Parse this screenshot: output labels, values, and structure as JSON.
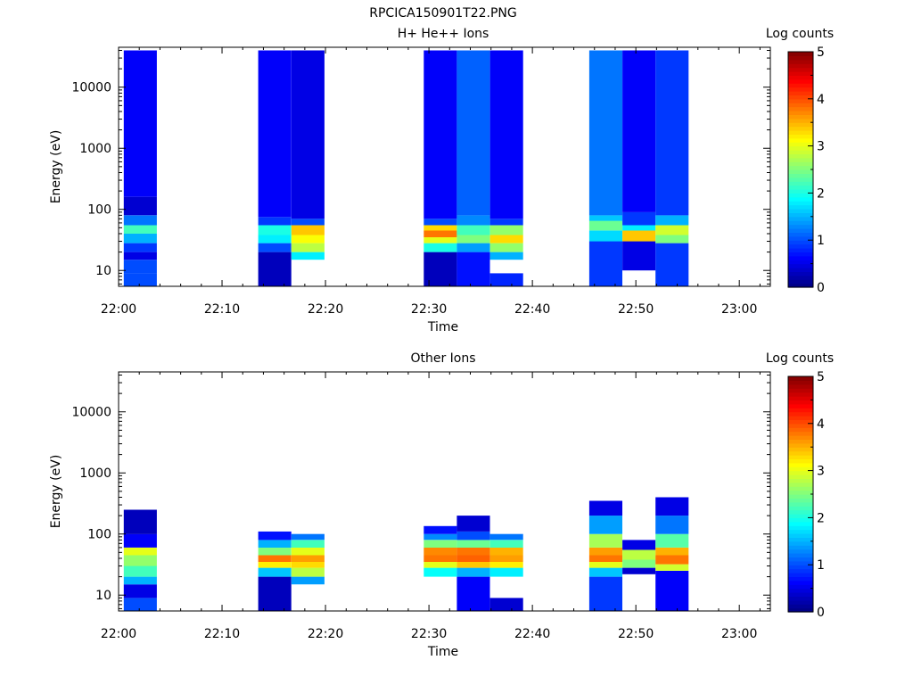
{
  "figure_title": "RPCICA150901T22.PNG",
  "colormap": [
    "#00007f",
    "#0000ff",
    "#007fff",
    "#00ffff",
    "#7fff7f",
    "#ffff00",
    "#ff7f00",
    "#ff0000",
    "#7f0000"
  ],
  "chart_data": [
    {
      "type": "heatmap",
      "title": "H+ He++ Ions",
      "xlabel": "Time",
      "ylabel": "Energy (eV)",
      "x_tick_labels": [
        "22:00",
        "22:10",
        "22:20",
        "22:30",
        "22:40",
        "22:50",
        "23:00"
      ],
      "xlim_minutes": [
        0,
        63
      ],
      "y_scale": "log",
      "ylim": [
        5.5,
        45000
      ],
      "y_tick_labels": [
        "10",
        "100",
        "1000",
        "10000"
      ],
      "colorbar": {
        "label": "Log counts",
        "range": [
          0,
          5
        ],
        "tick_labels": [
          "0",
          "1",
          "2",
          "3",
          "4",
          "5"
        ]
      },
      "columns": [
        {
          "t_start_min": 0.5,
          "t_end_min": 3.7,
          "bins": [
            [
              5.5,
              9,
              1.0
            ],
            [
              9,
              15,
              1.0
            ],
            [
              15,
              20,
              0.5
            ],
            [
              20,
              28,
              0.9
            ],
            [
              28,
              40,
              1.5
            ],
            [
              40,
              55,
              2.2
            ],
            [
              55,
              80,
              1.2
            ],
            [
              80,
              160,
              0.4
            ],
            [
              160,
              40000,
              0.6
            ]
          ]
        },
        {
          "t_start_min": 13.5,
          "t_end_min": 16.7,
          "bins": [
            [
              5.5,
              20,
              0.3
            ],
            [
              20,
              28,
              1.0
            ],
            [
              28,
              38,
              1.8
            ],
            [
              38,
              55,
              2.0
            ],
            [
              55,
              75,
              0.9
            ],
            [
              75,
              40000,
              0.6
            ]
          ]
        },
        {
          "t_start_min": 16.7,
          "t_end_min": 19.9,
          "bins": [
            [
              15,
              20,
              1.8
            ],
            [
              20,
              28,
              2.8
            ],
            [
              28,
              38,
              3.1
            ],
            [
              38,
              55,
              3.4
            ],
            [
              55,
              70,
              1.0
            ],
            [
              70,
              40000,
              0.5
            ]
          ]
        },
        {
          "t_start_min": 29.5,
          "t_end_min": 32.7,
          "bins": [
            [
              5.5,
              20,
              0.3
            ],
            [
              20,
              28,
              2.0
            ],
            [
              28,
              35,
              3.0
            ],
            [
              35,
              45,
              3.8
            ],
            [
              45,
              55,
              3.3
            ],
            [
              55,
              70,
              1.0
            ],
            [
              70,
              40000,
              0.6
            ]
          ]
        },
        {
          "t_start_min": 32.7,
          "t_end_min": 35.9,
          "bins": [
            [
              5.5,
              20,
              0.7
            ],
            [
              20,
              28,
              1.4
            ],
            [
              28,
              38,
              2.5
            ],
            [
              38,
              55,
              2.2
            ],
            [
              55,
              80,
              1.3
            ],
            [
              80,
              40000,
              1.1
            ]
          ]
        },
        {
          "t_start_min": 35.9,
          "t_end_min": 39.1,
          "bins": [
            [
              5.5,
              9,
              0.8
            ],
            [
              15,
              20,
              1.5
            ],
            [
              20,
              28,
              2.6
            ],
            [
              28,
              38,
              3.3
            ],
            [
              38,
              55,
              2.6
            ],
            [
              55,
              70,
              0.9
            ],
            [
              70,
              40000,
              0.6
            ]
          ]
        },
        {
          "t_start_min": 45.5,
          "t_end_min": 48.7,
          "bins": [
            [
              5.5,
              30,
              0.9
            ],
            [
              30,
              45,
              1.7
            ],
            [
              45,
              65,
              2.4
            ],
            [
              65,
              80,
              1.6
            ],
            [
              80,
              40000,
              1.2
            ]
          ]
        },
        {
          "t_start_min": 48.7,
          "t_end_min": 51.9,
          "bins": [
            [
              10,
              30,
              0.5
            ],
            [
              30,
              45,
              3.4
            ],
            [
              45,
              55,
              1.8
            ],
            [
              55,
              90,
              0.9
            ],
            [
              90,
              40000,
              0.6
            ]
          ]
        },
        {
          "t_start_min": 51.9,
          "t_end_min": 55.1,
          "bins": [
            [
              5.5,
              28,
              0.9
            ],
            [
              28,
              38,
              2.5
            ],
            [
              38,
              55,
              2.9
            ],
            [
              55,
              80,
              1.5
            ],
            [
              80,
              40000,
              0.9
            ]
          ]
        }
      ]
    },
    {
      "type": "heatmap",
      "title": "Other Ions",
      "xlabel": "Time",
      "ylabel": "Energy (eV)",
      "x_tick_labels": [
        "22:00",
        "22:10",
        "22:20",
        "22:30",
        "22:40",
        "22:50",
        "23:00"
      ],
      "xlim_minutes": [
        0,
        63
      ],
      "y_scale": "log",
      "ylim": [
        5.5,
        45000
      ],
      "y_tick_labels": [
        "10",
        "100",
        "1000",
        "10000"
      ],
      "colorbar": {
        "label": "Log counts",
        "range": [
          0,
          5
        ],
        "tick_labels": [
          "0",
          "1",
          "2",
          "3",
          "4",
          "5"
        ]
      },
      "columns": [
        {
          "t_start_min": 0.5,
          "t_end_min": 3.7,
          "bins": [
            [
              5.5,
              9,
              1.0
            ],
            [
              9,
              15,
              0.5
            ],
            [
              15,
              20,
              1.5
            ],
            [
              20,
              30,
              2.2
            ],
            [
              30,
              45,
              2.6
            ],
            [
              45,
              60,
              3.0
            ],
            [
              60,
              100,
              0.6
            ],
            [
              100,
              250,
              0.3
            ]
          ]
        },
        {
          "t_start_min": 13.5,
          "t_end_min": 16.7,
          "bins": [
            [
              5.5,
              20,
              0.3
            ],
            [
              20,
              28,
              1.6
            ],
            [
              28,
              35,
              3.2
            ],
            [
              35,
              45,
              3.8
            ],
            [
              45,
              60,
              2.5
            ],
            [
              60,
              80,
              1.5
            ],
            [
              80,
              110,
              0.7
            ]
          ]
        },
        {
          "t_start_min": 16.7,
          "t_end_min": 19.9,
          "bins": [
            [
              15,
              20,
              1.4
            ],
            [
              20,
              28,
              2.8
            ],
            [
              28,
              35,
              3.3
            ],
            [
              35,
              45,
              3.6
            ],
            [
              45,
              60,
              3.0
            ],
            [
              60,
              80,
              2.2
            ],
            [
              80,
              100,
              1.2
            ]
          ]
        },
        {
          "t_start_min": 29.5,
          "t_end_min": 32.7,
          "bins": [
            [
              20,
              28,
              1.9
            ],
            [
              28,
              35,
              3.0
            ],
            [
              35,
              45,
              3.8
            ],
            [
              45,
              60,
              3.7
            ],
            [
              60,
              80,
              2.5
            ],
            [
              80,
              100,
              1.3
            ],
            [
              100,
              135,
              0.7
            ]
          ]
        },
        {
          "t_start_min": 32.7,
          "t_end_min": 35.9,
          "bins": [
            [
              5.5,
              20,
              0.6
            ],
            [
              20,
              28,
              1.5
            ],
            [
              28,
              35,
              3.4
            ],
            [
              35,
              45,
              3.9
            ],
            [
              45,
              60,
              3.8
            ],
            [
              60,
              80,
              2.4
            ],
            [
              80,
              110,
              1.0
            ],
            [
              110,
              200,
              0.4
            ]
          ]
        },
        {
          "t_start_min": 35.9,
          "t_end_min": 39.1,
          "bins": [
            [
              5.5,
              9,
              0.4
            ],
            [
              20,
              28,
              1.8
            ],
            [
              28,
              35,
              3.2
            ],
            [
              35,
              45,
              3.6
            ],
            [
              45,
              60,
              3.5
            ],
            [
              60,
              80,
              2.2
            ],
            [
              80,
              100,
              1.2
            ]
          ]
        },
        {
          "t_start_min": 45.5,
          "t_end_min": 48.7,
          "bins": [
            [
              5.5,
              20,
              0.9
            ],
            [
              20,
              28,
              1.6
            ],
            [
              28,
              35,
              3.0
            ],
            [
              35,
              45,
              3.8
            ],
            [
              45,
              60,
              3.6
            ],
            [
              60,
              100,
              2.7
            ],
            [
              100,
              200,
              1.4
            ],
            [
              200,
              350,
              0.5
            ]
          ]
        },
        {
          "t_start_min": 48.7,
          "t_end_min": 51.9,
          "bins": [
            [
              22,
              28,
              0.4
            ],
            [
              28,
              38,
              2.5
            ],
            [
              38,
              55,
              2.8
            ],
            [
              55,
              80,
              0.5
            ]
          ]
        },
        {
          "t_start_min": 51.9,
          "t_end_min": 55.1,
          "bins": [
            [
              5.5,
              25,
              0.6
            ],
            [
              25,
              32,
              2.9
            ],
            [
              32,
              45,
              3.8
            ],
            [
              45,
              60,
              3.5
            ],
            [
              60,
              100,
              2.3
            ],
            [
              100,
              200,
              1.2
            ],
            [
              200,
              400,
              0.5
            ]
          ]
        }
      ]
    }
  ]
}
